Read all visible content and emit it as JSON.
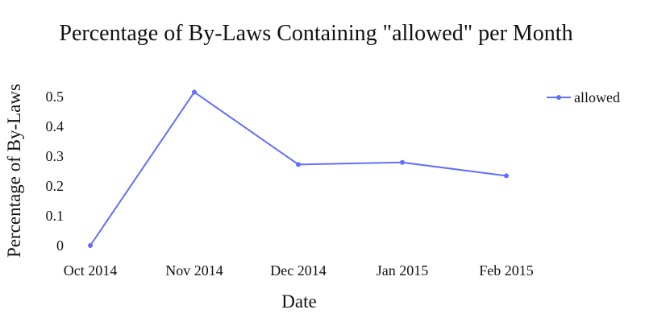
{
  "chart_data": {
    "type": "line",
    "title": "Percentage of By-Laws Containing \"allowed\" per Month",
    "xlabel": "Date",
    "ylabel": "Percentage of By-Laws",
    "categories": [
      "Oct 2014",
      "Nov 2014",
      "Dec 2014",
      "Jan 2015",
      "Feb 2015"
    ],
    "yticks": [
      "0",
      "0.1",
      "0.2",
      "0.3",
      "0.4",
      "0.5"
    ],
    "ylim": [
      0,
      0.55
    ],
    "grid": false,
    "legend_position": "top-right",
    "series": [
      {
        "name": "allowed",
        "color": "#636efa",
        "values": [
          0.0,
          0.515,
          0.272,
          0.279,
          0.234
        ]
      }
    ]
  }
}
